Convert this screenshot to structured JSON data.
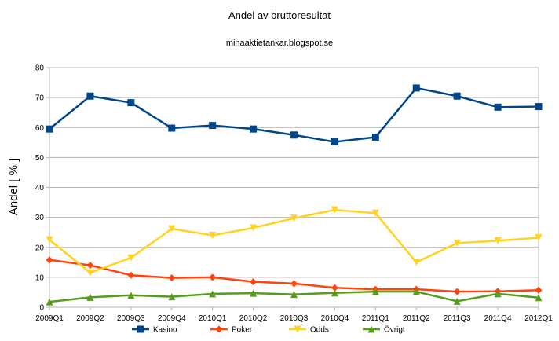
{
  "chart_data": {
    "type": "line",
    "title": "Andel av bruttoresultat",
    "subtitle": "minaaktietankar.blogspot.se",
    "xlabel": "",
    "ylabel": "Andel [ % ]",
    "ylim": [
      0,
      80
    ],
    "yticks": [
      0,
      10,
      20,
      30,
      40,
      50,
      60,
      70,
      80
    ],
    "grid": true,
    "legend_position": "bottom",
    "categories": [
      "2009Q1",
      "2009Q2",
      "2009Q3",
      "2009Q4",
      "2010Q1",
      "2010Q2",
      "2010Q3",
      "2010Q4",
      "2011Q1",
      "2011Q2",
      "2011Q3",
      "2011Q4",
      "2012Q1"
    ],
    "series": [
      {
        "name": "Kasino",
        "color": "#004586",
        "marker": "square",
        "values": [
          59.5,
          70.5,
          68.3,
          59.8,
          60.7,
          59.5,
          57.5,
          55.2,
          56.8,
          73.2,
          70.5,
          66.8,
          67.0
        ]
      },
      {
        "name": "Poker",
        "color": "#ff420e",
        "marker": "diamond",
        "values": [
          15.8,
          14.0,
          10.7,
          9.8,
          10.0,
          8.5,
          7.9,
          6.5,
          6.0,
          6.0,
          5.2,
          5.3,
          5.7
        ]
      },
      {
        "name": "Odds",
        "color": "#ffd320",
        "marker": "triangle-down",
        "values": [
          22.5,
          11.5,
          16.5,
          26.2,
          24.0,
          26.5,
          29.7,
          32.5,
          31.4,
          15.0,
          21.4,
          22.2,
          23.2
        ]
      },
      {
        "name": "Övrigt",
        "color": "#579d1c",
        "marker": "triangle-up",
        "values": [
          1.8,
          3.3,
          4.0,
          3.5,
          4.5,
          4.7,
          4.3,
          4.8,
          5.2,
          5.2,
          2.0,
          4.5,
          3.2
        ]
      }
    ]
  }
}
